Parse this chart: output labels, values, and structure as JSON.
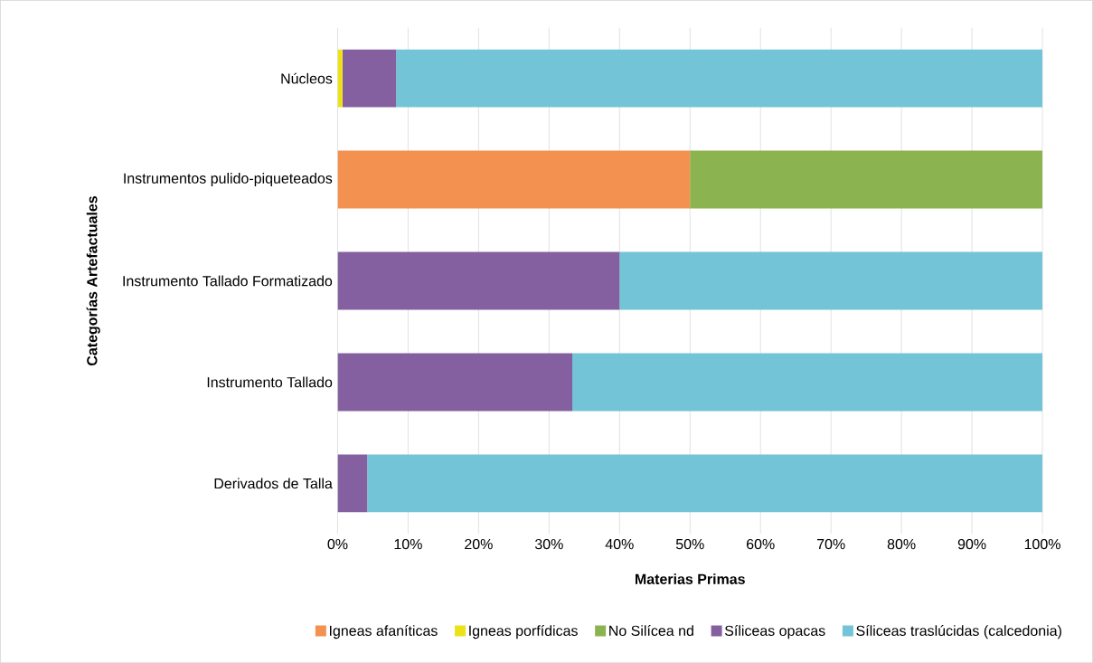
{
  "chart_data": {
    "type": "bar",
    "orientation": "horizontal",
    "stacked": true,
    "xlabel": "Materias Primas",
    "ylabel": "Categorías Artefactuales",
    "categories": [
      "Núcleos",
      "Instrumentos pulido-piqueteados",
      "Instrumento Tallado Formatizado",
      "Instrumento Tallado",
      "Derivados de Talla"
    ],
    "series": [
      {
        "name": "Igneas afaníticas",
        "color": "#f39250",
        "values": [
          null,
          50,
          null,
          null,
          null
        ]
      },
      {
        "name": "Igneas porfídicas",
        "color": "#ece21a",
        "values": [
          0.7,
          null,
          null,
          null,
          null
        ]
      },
      {
        "name": "No Silícea nd",
        "color": "#8bb450",
        "values": [
          null,
          50,
          null,
          null,
          null
        ]
      },
      {
        "name": "Síliceas opacas",
        "color": "#8560a0",
        "values": [
          7.6,
          null,
          40,
          33.3,
          4.2
        ]
      },
      {
        "name": "Síliceas traslúcidas (calcedonia)",
        "color": "#72c4d6",
        "values": [
          91.7,
          null,
          60,
          66.7,
          95.8
        ]
      }
    ],
    "xlim": [
      0,
      100
    ],
    "xticks": [
      {
        "value": 0,
        "label": "0%"
      },
      {
        "value": 10,
        "label": "10%"
      },
      {
        "value": 20,
        "label": "20%"
      },
      {
        "value": 30,
        "label": "30%"
      },
      {
        "value": 40,
        "label": "40%"
      },
      {
        "value": 50,
        "label": "50%"
      },
      {
        "value": 60,
        "label": "60%"
      },
      {
        "value": 70,
        "label": "70%"
      },
      {
        "value": 80,
        "label": "80%"
      },
      {
        "value": 90,
        "label": "90%"
      },
      {
        "value": 100,
        "label": "100%"
      }
    ],
    "grid": "x",
    "legend": "bottom"
  }
}
